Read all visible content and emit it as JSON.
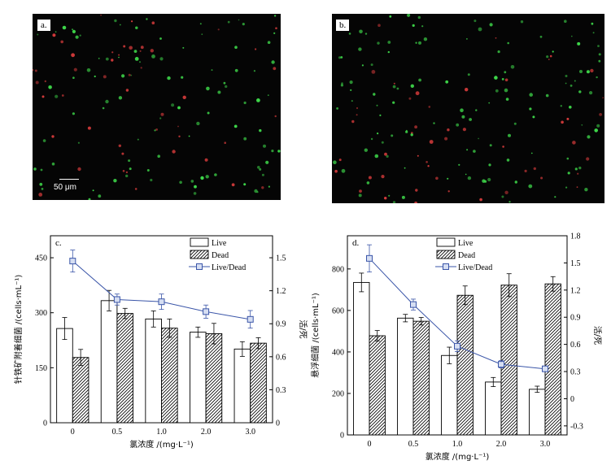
{
  "micrographs": [
    {
      "tag": "a.",
      "scale_label": "50 μm"
    },
    {
      "tag": "b.",
      "scale_label": ""
    }
  ],
  "colors": {
    "bar_stroke": "#000000",
    "ratio_line": "#3a55a8",
    "marker_face": "#d6def2",
    "live_dot": "#3ed84a",
    "dead_dot": "#d23a3a"
  },
  "chart_data": [
    {
      "panel": "c.",
      "type": "bar",
      "categories": [
        "0",
        "0.5",
        "1.0",
        "2.0",
        "3.0"
      ],
      "xlabel": "氯浓度 /(mg·L⁻¹)",
      "ylabel_left": "针铁矿附着细菌 /(cells·mL⁻¹)",
      "ylabel_right": "活/死",
      "ylim_left": [
        0,
        510
      ],
      "yticks_left": [
        0,
        150,
        300,
        450
      ],
      "ylim_right": [
        0,
        1.7
      ],
      "yticks_right": [
        "0",
        "0.3",
        "0.6",
        "0.9",
        "1.2",
        "1.5"
      ],
      "series": [
        {
          "name": "Live",
          "values": [
            257,
            333,
            283,
            247,
            201
          ],
          "errors": [
            30,
            28,
            22,
            14,
            20
          ],
          "style": "open"
        },
        {
          "name": "Dead",
          "values": [
            178,
            298,
            258,
            243,
            217
          ],
          "errors": [
            22,
            14,
            25,
            28,
            15
          ],
          "style": "hatched"
        }
      ],
      "ratio_series": {
        "name": "Live/Dead",
        "values": [
          1.47,
          1.12,
          1.1,
          1.01,
          0.94
        ],
        "errors": [
          0.1,
          0.05,
          0.07,
          0.06,
          0.08
        ]
      }
    },
    {
      "panel": "d.",
      "type": "bar",
      "categories": [
        "0",
        "0.5",
        "1.0",
        "2.0",
        "3.0"
      ],
      "xlabel": "氯浓度 /(mg·L⁻¹)",
      "ylabel_left": "悬浮细菌 /(cells·mL⁻¹)",
      "ylabel_right": "活/死",
      "ylim_left": [
        0,
        960
      ],
      "yticks_left": [
        0,
        200,
        400,
        600,
        800
      ],
      "ylim_right": [
        -0.4,
        1.8
      ],
      "yticks_right": [
        "-0.3",
        "0",
        "0.3",
        "0.6",
        "0.9",
        "1.2",
        "1.5",
        "1.8"
      ],
      "series": [
        {
          "name": "Live",
          "values": [
            735,
            563,
            383,
            255,
            220
          ],
          "errors": [
            45,
            18,
            40,
            22,
            15
          ],
          "style": "open"
        },
        {
          "name": "Dead",
          "values": [
            478,
            548,
            673,
            722,
            728
          ],
          "errors": [
            25,
            18,
            45,
            55,
            35
          ],
          "style": "hatched"
        }
      ],
      "ratio_series": {
        "name": "Live/Dead",
        "values": [
          1.55,
          1.04,
          0.58,
          0.38,
          0.33
        ],
        "errors": [
          0.15,
          0.06,
          0.06,
          0.04,
          0.03
        ]
      }
    }
  ]
}
